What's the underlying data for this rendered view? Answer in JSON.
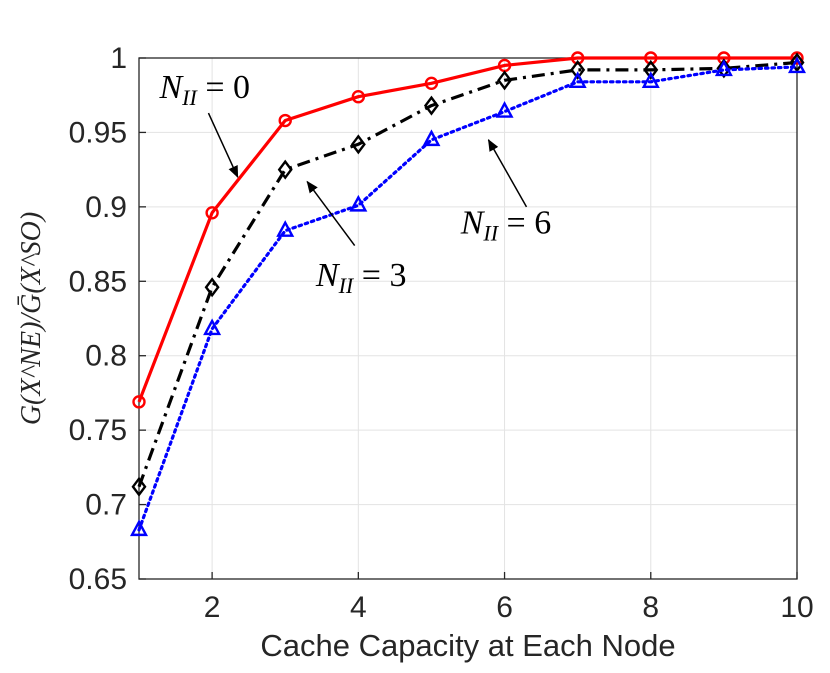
{
  "chart_data": {
    "type": "line",
    "xlabel": "Cache Capacity at Each Node",
    "ylabel": "G(X^NE)/Ḡ(X^SO)",
    "xlim": [
      1,
      10
    ],
    "ylim": [
      0.65,
      1
    ],
    "xticks": [
      2,
      4,
      6,
      8,
      10
    ],
    "yticks": [
      0.65,
      0.7,
      0.75,
      0.8,
      0.85,
      0.9,
      0.95,
      1
    ],
    "ytick_labels": [
      "0.65",
      "0.7",
      "0.75",
      "0.8",
      "0.85",
      "0.9",
      "0.95",
      "1"
    ],
    "grid": true,
    "x": [
      1,
      2,
      3,
      4,
      5,
      6,
      7,
      8,
      9,
      10
    ],
    "series": [
      {
        "values": [
          0.769,
          0.896,
          0.958,
          0.974,
          0.983,
          0.995,
          1.0,
          1.0,
          1.0,
          1.0
        ],
        "color": "#ff0000",
        "line_style": "solid",
        "marker": "circle"
      },
      {
        "values": [
          0.712,
          0.846,
          0.925,
          0.942,
          0.968,
          0.985,
          0.992,
          0.992,
          0.993,
          0.997
        ],
        "color": "#000000",
        "line_style": "dash-dot",
        "marker": "diamond"
      },
      {
        "values": [
          0.683,
          0.818,
          0.884,
          0.901,
          0.945,
          0.964,
          0.984,
          0.984,
          0.992,
          0.994
        ],
        "color": "#0000ff",
        "line_style": "dotted",
        "marker": "triangle"
      }
    ],
    "annotations": [
      {
        "base": "N",
        "sub": "II",
        "rest": " = 0",
        "text_x": 1.28,
        "text_y": 0.973,
        "arrow_from": [
          1.95,
          0.963
        ],
        "arrow_to": [
          2.35,
          0.92
        ]
      },
      {
        "base": "N",
        "sub": "II",
        "rest": " = 3",
        "text_x": 3.42,
        "text_y": 0.847,
        "arrow_from": [
          3.95,
          0.874
        ],
        "arrow_to": [
          3.3,
          0.917
        ]
      },
      {
        "base": "N",
        "sub": "II",
        "rest": " = 6",
        "text_x": 5.4,
        "text_y": 0.882,
        "arrow_from": [
          6.3,
          0.9
        ],
        "arrow_to": [
          5.78,
          0.945
        ]
      }
    ]
  }
}
